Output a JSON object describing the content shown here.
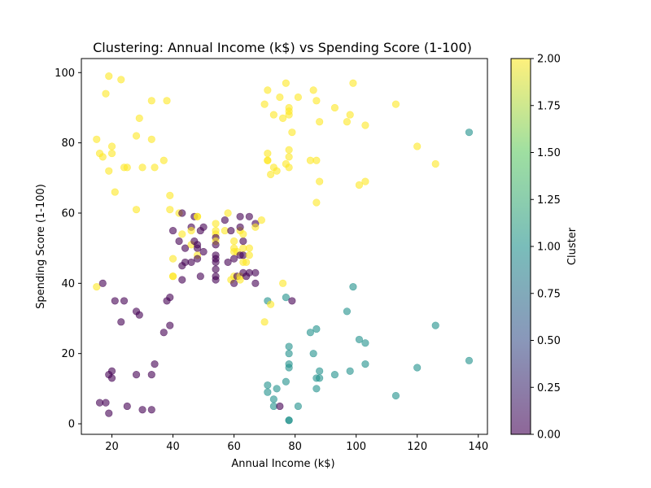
{
  "chart_data": {
    "type": "scatter",
    "title": "Clustering: Annual Income (k$) vs Spending Score (1-100)",
    "xlabel": "Annual Income (k$)",
    "ylabel": "Spending Score (1-100)",
    "xlim": [
      10,
      143
    ],
    "ylim": [
      -3,
      104
    ],
    "xticks": [
      20,
      40,
      60,
      80,
      100,
      120,
      140
    ],
    "yticks": [
      0,
      20,
      40,
      60,
      80,
      100
    ],
    "grid": false,
    "marker_alpha": 0.6,
    "colorbar": {
      "label": "Cluster",
      "range": [
        0,
        2
      ],
      "ticks": [
        "0.00",
        "0.25",
        "0.50",
        "0.75",
        "1.00",
        "1.25",
        "1.50",
        "1.75",
        "2.00"
      ],
      "colormap": "viridis",
      "colors": [
        "#440154",
        "#3b528b",
        "#21918c",
        "#5ec962",
        "#fde725"
      ]
    },
    "points": [
      [
        15,
        39,
        2
      ],
      [
        15,
        81,
        2
      ],
      [
        16,
        6,
        0
      ],
      [
        16,
        77,
        2
      ],
      [
        17,
        40,
        0
      ],
      [
        17,
        76,
        2
      ],
      [
        18,
        6,
        0
      ],
      [
        18,
        94,
        2
      ],
      [
        19,
        3,
        0
      ],
      [
        19,
        72,
        2
      ],
      [
        19,
        14,
        0
      ],
      [
        19,
        99,
        2
      ],
      [
        20,
        15,
        0
      ],
      [
        20,
        77,
        2
      ],
      [
        20,
        13,
        0
      ],
      [
        20,
        79,
        2
      ],
      [
        21,
        35,
        0
      ],
      [
        21,
        66,
        2
      ],
      [
        23,
        29,
        0
      ],
      [
        23,
        98,
        2
      ],
      [
        24,
        35,
        0
      ],
      [
        24,
        73,
        2
      ],
      [
        25,
        5,
        0
      ],
      [
        25,
        73,
        2
      ],
      [
        28,
        14,
        0
      ],
      [
        28,
        82,
        2
      ],
      [
        28,
        32,
        0
      ],
      [
        28,
        61,
        2
      ],
      [
        29,
        31,
        0
      ],
      [
        29,
        87,
        2
      ],
      [
        30,
        4,
        0
      ],
      [
        30,
        73,
        2
      ],
      [
        33,
        4,
        0
      ],
      [
        33,
        92,
        2
      ],
      [
        33,
        14,
        0
      ],
      [
        33,
        81,
        2
      ],
      [
        34,
        17,
        0
      ],
      [
        34,
        73,
        2
      ],
      [
        37,
        26,
        0
      ],
      [
        37,
        75,
        2
      ],
      [
        38,
        35,
        0
      ],
      [
        38,
        92,
        2
      ],
      [
        39,
        36,
        0
      ],
      [
        39,
        61,
        2
      ],
      [
        39,
        28,
        0
      ],
      [
        39,
        65,
        2
      ],
      [
        40,
        55,
        0
      ],
      [
        40,
        47,
        2
      ],
      [
        40,
        42,
        2
      ],
      [
        40,
        42,
        2
      ],
      [
        42,
        52,
        0
      ],
      [
        42,
        60,
        2
      ],
      [
        43,
        54,
        2
      ],
      [
        43,
        60,
        0
      ],
      [
        43,
        45,
        0
      ],
      [
        43,
        41,
        0
      ],
      [
        44,
        50,
        0
      ],
      [
        44,
        46,
        0
      ],
      [
        46,
        51,
        2
      ],
      [
        46,
        46,
        0
      ],
      [
        46,
        56,
        0
      ],
      [
        46,
        55,
        2
      ],
      [
        47,
        52,
        0
      ],
      [
        47,
        59,
        0
      ],
      [
        48,
        51,
        0
      ],
      [
        48,
        59,
        2
      ],
      [
        48,
        50,
        0
      ],
      [
        48,
        48,
        2
      ],
      [
        48,
        59,
        2
      ],
      [
        48,
        47,
        0
      ],
      [
        49,
        55,
        0
      ],
      [
        49,
        42,
        0
      ],
      [
        50,
        49,
        0
      ],
      [
        50,
        56,
        0
      ],
      [
        54,
        47,
        0
      ],
      [
        54,
        54,
        2
      ],
      [
        54,
        53,
        0
      ],
      [
        54,
        48,
        0
      ],
      [
        54,
        52,
        2
      ],
      [
        54,
        42,
        0
      ],
      [
        54,
        51,
        0
      ],
      [
        54,
        55,
        2
      ],
      [
        54,
        41,
        0
      ],
      [
        54,
        44,
        0
      ],
      [
        54,
        57,
        2
      ],
      [
        54,
        46,
        0
      ],
      [
        57,
        58,
        0
      ],
      [
        57,
        55,
        2
      ],
      [
        58,
        60,
        2
      ],
      [
        58,
        46,
        0
      ],
      [
        59,
        55,
        0
      ],
      [
        59,
        41,
        2
      ],
      [
        60,
        49,
        2
      ],
      [
        60,
        40,
        0
      ],
      [
        60,
        42,
        2
      ],
      [
        60,
        52,
        2
      ],
      [
        60,
        47,
        0
      ],
      [
        60,
        50,
        2
      ],
      [
        61,
        42,
        0
      ],
      [
        61,
        49,
        2
      ],
      [
        62,
        41,
        2
      ],
      [
        62,
        48,
        0
      ],
      [
        62,
        59,
        0
      ],
      [
        62,
        55,
        2
      ],
      [
        62,
        56,
        0
      ],
      [
        62,
        42,
        2
      ],
      [
        63,
        50,
        2
      ],
      [
        63,
        46,
        2
      ],
      [
        63,
        43,
        0
      ],
      [
        63,
        48,
        0
      ],
      [
        63,
        52,
        0
      ],
      [
        63,
        54,
        2
      ],
      [
        64,
        42,
        0
      ],
      [
        64,
        46,
        2
      ],
      [
        65,
        48,
        2
      ],
      [
        65,
        50,
        2
      ],
      [
        65,
        43,
        0
      ],
      [
        65,
        59,
        0
      ],
      [
        67,
        43,
        0
      ],
      [
        67,
        57,
        0
      ],
      [
        67,
        56,
        2
      ],
      [
        67,
        40,
        0
      ],
      [
        69,
        58,
        2
      ],
      [
        70,
        91,
        2
      ],
      [
        70,
        29,
        2
      ],
      [
        71,
        77,
        2
      ],
      [
        71,
        35,
        1
      ],
      [
        71,
        95,
        2
      ],
      [
        71,
        11,
        1
      ],
      [
        71,
        75,
        2
      ],
      [
        71,
        9,
        1
      ],
      [
        71,
        75,
        2
      ],
      [
        72,
        34,
        2
      ],
      [
        72,
        71,
        2
      ],
      [
        73,
        5,
        1
      ],
      [
        73,
        88,
        2
      ],
      [
        73,
        7,
        1
      ],
      [
        73,
        73,
        2
      ],
      [
        74,
        10,
        1
      ],
      [
        74,
        72,
        2
      ],
      [
        75,
        5,
        0
      ],
      [
        75,
        93,
        2
      ],
      [
        76,
        40,
        2
      ],
      [
        76,
        87,
        2
      ],
      [
        77,
        12,
        1
      ],
      [
        77,
        97,
        2
      ],
      [
        77,
        36,
        1
      ],
      [
        77,
        74,
        2
      ],
      [
        78,
        22,
        1
      ],
      [
        78,
        90,
        2
      ],
      [
        78,
        17,
        1
      ],
      [
        78,
        88,
        2
      ],
      [
        78,
        20,
        1
      ],
      [
        78,
        76,
        2
      ],
      [
        78,
        16,
        1
      ],
      [
        78,
        89,
        2
      ],
      [
        78,
        1,
        1
      ],
      [
        78,
        78,
        2
      ],
      [
        78,
        1,
        1
      ],
      [
        78,
        73,
        2
      ],
      [
        79,
        35,
        0
      ],
      [
        79,
        83,
        2
      ],
      [
        81,
        5,
        1
      ],
      [
        81,
        93,
        2
      ],
      [
        85,
        26,
        1
      ],
      [
        85,
        75,
        2
      ],
      [
        86,
        20,
        1
      ],
      [
        86,
        95,
        2
      ],
      [
        87,
        27,
        1
      ],
      [
        87,
        63,
        2
      ],
      [
        87,
        13,
        1
      ],
      [
        87,
        75,
        2
      ],
      [
        87,
        10,
        1
      ],
      [
        87,
        92,
        2
      ],
      [
        88,
        13,
        1
      ],
      [
        88,
        86,
        2
      ],
      [
        88,
        15,
        1
      ],
      [
        88,
        69,
        2
      ],
      [
        93,
        14,
        1
      ],
      [
        93,
        90,
        2
      ],
      [
        97,
        32,
        1
      ],
      [
        97,
        86,
        2
      ],
      [
        98,
        15,
        1
      ],
      [
        98,
        88,
        2
      ],
      [
        99,
        39,
        1
      ],
      [
        99,
        97,
        2
      ],
      [
        101,
        24,
        1
      ],
      [
        101,
        68,
        2
      ],
      [
        103,
        17,
        1
      ],
      [
        103,
        85,
        2
      ],
      [
        103,
        23,
        1
      ],
      [
        103,
        69,
        2
      ],
      [
        113,
        8,
        1
      ],
      [
        113,
        91,
        2
      ],
      [
        120,
        16,
        1
      ],
      [
        120,
        79,
        2
      ],
      [
        126,
        28,
        1
      ],
      [
        126,
        74,
        2
      ],
      [
        137,
        18,
        1
      ],
      [
        137,
        83,
        1
      ]
    ]
  }
}
